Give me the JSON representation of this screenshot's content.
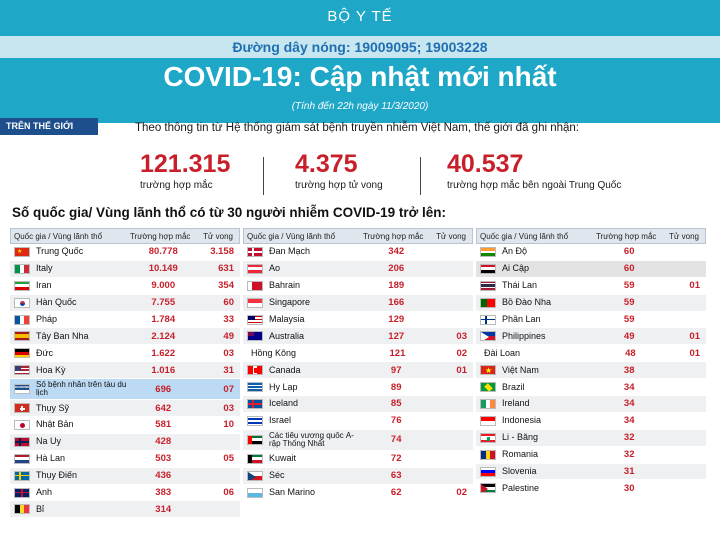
{
  "header": {
    "ministry": "BỘ Y TẾ",
    "hotline": "Đường dây nóng: 19009095; 19003228",
    "title": "COVID-19: Cập nhật mới nhất",
    "subtitle": "(Tính đến 22h ngày 11/3/2020)"
  },
  "world_tag": "TRÊN THẾ GIỚI",
  "intro": "Theo thông tin từ Hệ thống giám sát bệnh truyền nhiễm Việt Nam, thế giới đã ghi nhận:",
  "stats": [
    {
      "value": "121.315",
      "label": "trường hợp mắc"
    },
    {
      "value": "4.375",
      "label": "trường hợp tử vong"
    },
    {
      "value": "40.537",
      "label": "trường hợp  mắc bên ngoài Trung Quốc"
    }
  ],
  "section_title": "Số quốc gia/ Vùng lãnh thổ có từ 30 người  nhiễm COVID-19 trở lên:",
  "table_header": {
    "country": "Quốc gia / Vùng lãnh thổ",
    "cases": "Trường hợp mắc",
    "deaths": "Tử vong"
  },
  "tables": [
    [
      {
        "name": "Trung Quốc",
        "cases": "80.778",
        "deaths": "3.158",
        "flag": "china"
      },
      {
        "name": "Italy",
        "cases": "10.149",
        "deaths": "631",
        "flag": "italy"
      },
      {
        "name": "Iran",
        "cases": "9.000",
        "deaths": "354",
        "flag": "iran"
      },
      {
        "name": "Hàn Quốc",
        "cases": "7.755",
        "deaths": "60",
        "flag": "korea"
      },
      {
        "name": "Pháp",
        "cases": "1.784",
        "deaths": "33",
        "flag": "france"
      },
      {
        "name": "Tây Ban Nha",
        "cases": "2.124",
        "deaths": "49",
        "flag": "spain"
      },
      {
        "name": "Đức",
        "cases": "1.622",
        "deaths": "03",
        "flag": "germany"
      },
      {
        "name": "Hoa Kỳ",
        "cases": "1.016",
        "deaths": "31",
        "flag": "usa"
      },
      {
        "name": "Số bệnh nhân trên tàu du lịch",
        "cases": "696",
        "deaths": "07",
        "flag": "ship",
        "ship_label": "DIAMOND"
      },
      {
        "name": "Thụy Sỹ",
        "cases": "642",
        "deaths": "03",
        "flag": "swiss"
      },
      {
        "name": "Nhật Bản",
        "cases": "581",
        "deaths": "10",
        "flag": "japan"
      },
      {
        "name": "Na Uy",
        "cases": "428",
        "deaths": "",
        "flag": "norway"
      },
      {
        "name": "Hà Lan",
        "cases": "503",
        "deaths": "05",
        "flag": "netherlands"
      },
      {
        "name": "Thụy Điển",
        "cases": "436",
        "deaths": "",
        "flag": "sweden"
      },
      {
        "name": "Anh",
        "cases": "383",
        "deaths": "06",
        "flag": "uk"
      },
      {
        "name": "Bỉ",
        "cases": "314",
        "deaths": "",
        "flag": "belgium"
      }
    ],
    [
      {
        "name": "Đan Mạch",
        "cases": "342",
        "deaths": "",
        "flag": "denmark"
      },
      {
        "name": "Áo",
        "cases": "206",
        "deaths": "",
        "flag": "austria"
      },
      {
        "name": "Bahrain",
        "cases": "189",
        "deaths": "",
        "flag": "bahrain"
      },
      {
        "name": "Singapore",
        "cases": "166",
        "deaths": "",
        "flag": "singapore"
      },
      {
        "name": "Malaysia",
        "cases": "129",
        "deaths": "",
        "flag": "malaysia"
      },
      {
        "name": "Australia",
        "cases": "127",
        "deaths": "03",
        "flag": "australia"
      },
      {
        "name": "Hồng Kông",
        "cases": "121",
        "deaths": "02",
        "flag": "none"
      },
      {
        "name": "Canada",
        "cases": "97",
        "deaths": "01",
        "flag": "canada"
      },
      {
        "name": "Hy Lạp",
        "cases": "89",
        "deaths": "",
        "flag": "greece"
      },
      {
        "name": "Iceland",
        "cases": "85",
        "deaths": "",
        "flag": "iceland"
      },
      {
        "name": "Israel",
        "cases": "76",
        "deaths": "",
        "flag": "israel"
      },
      {
        "name": "Các tiểu vương quốc Ả-rập Thống Nhất",
        "cases": "74",
        "deaths": "",
        "flag": "uae"
      },
      {
        "name": "Kuwait",
        "cases": "72",
        "deaths": "",
        "flag": "kuwait"
      },
      {
        "name": "Séc",
        "cases": "63",
        "deaths": "",
        "flag": "czech"
      },
      {
        "name": "San Marino",
        "cases": "62",
        "deaths": "02",
        "flag": "sanmarino"
      }
    ],
    [
      {
        "name": "Ấn Độ",
        "cases": "60",
        "deaths": "",
        "flag": "india"
      },
      {
        "name": "Ai Cập",
        "cases": "60",
        "deaths": "",
        "flag": "egypt"
      },
      {
        "name": "Thái Lan",
        "cases": "59",
        "deaths": "01",
        "flag": "thailand"
      },
      {
        "name": "Bồ Đào Nha",
        "cases": "59",
        "deaths": "",
        "flag": "portugal"
      },
      {
        "name": "Phần Lan",
        "cases": "59",
        "deaths": "",
        "flag": "finland"
      },
      {
        "name": "Philippines",
        "cases": "49",
        "deaths": "01",
        "flag": "philippines"
      },
      {
        "name": "Đài Loan",
        "cases": "48",
        "deaths": "01",
        "flag": "none"
      },
      {
        "name": "Việt Nam",
        "cases": "38",
        "deaths": "",
        "flag": "vietnam"
      },
      {
        "name": "Brazil",
        "cases": "34",
        "deaths": "",
        "flag": "brazil"
      },
      {
        "name": "Ireland",
        "cases": "34",
        "deaths": "",
        "flag": "ireland"
      },
      {
        "name": "Indonesia",
        "cases": "34",
        "deaths": "",
        "flag": "indonesia"
      },
      {
        "name": "Li - Băng",
        "cases": "32",
        "deaths": "",
        "flag": "lebanon"
      },
      {
        "name": "Romania",
        "cases": "32",
        "deaths": "",
        "flag": "romania"
      },
      {
        "name": "Slovenia",
        "cases": "31",
        "deaths": "",
        "flag": "slovenia"
      },
      {
        "name": "Palestine",
        "cases": "30",
        "deaths": "",
        "flag": "palestine"
      }
    ]
  ],
  "colors": {
    "header_bg": "#1fa7c8",
    "accent_red": "#c8202b",
    "title_text": "#ffffff",
    "hotline_text": "#1f6fb3"
  }
}
